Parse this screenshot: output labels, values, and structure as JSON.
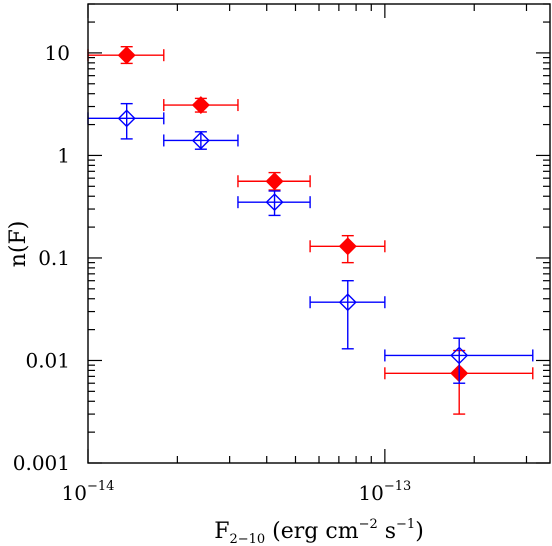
{
  "chart_data": {
    "type": "scatter",
    "xscale": "log",
    "yscale": "log",
    "xlim": [
      1e-14,
      3.6e-13
    ],
    "ylim": [
      0.001,
      30
    ],
    "x_ticks": [
      {
        "value": 1e-14,
        "mantissa": "10",
        "exponent": "−14"
      },
      {
        "value": 1e-13,
        "mantissa": "10",
        "exponent": "−13"
      }
    ],
    "y_ticks": [
      {
        "value": 10,
        "label": "10"
      },
      {
        "value": 1,
        "label": "1"
      },
      {
        "value": 0.1,
        "label": "0.1"
      },
      {
        "value": 0.01,
        "label": "0.01"
      },
      {
        "value": 0.001,
        "label": "0.001"
      }
    ],
    "xlabel": {
      "base": "F",
      "subscript": "2−10",
      "open": " (erg cm",
      "exp1": "−2",
      "mid": " s",
      "exp2": "−1",
      "close": ")"
    },
    "ylabel": "n(F)",
    "grid": false,
    "series": [
      {
        "color": "#ff0000",
        "marker": "filled-diamond",
        "points": [
          {
            "x": 1.35e-14,
            "x_lo": 1e-14,
            "x_hi": 1.8e-14,
            "y": 9.5,
            "y_lo": 7.9,
            "y_hi": 11.5
          },
          {
            "x": 2.4e-14,
            "x_lo": 1.8e-14,
            "x_hi": 3.2e-14,
            "y": 3.1,
            "y_lo": 2.65,
            "y_hi": 3.6
          },
          {
            "x": 4.25e-14,
            "x_lo": 3.2e-14,
            "x_hi": 5.6e-14,
            "y": 0.56,
            "y_lo": 0.46,
            "y_hi": 0.68
          },
          {
            "x": 7.5e-14,
            "x_lo": 5.6e-14,
            "x_hi": 1e-13,
            "y": 0.13,
            "y_lo": 0.09,
            "y_hi": 0.165
          },
          {
            "x": 1.78e-13,
            "x_lo": 1e-13,
            "x_hi": 3.15e-13,
            "y": 0.0075,
            "y_lo": 0.003,
            "y_hi": 0.0125
          }
        ]
      },
      {
        "color": "#0000ff",
        "marker": "open-diamond",
        "points": [
          {
            "x": 1.35e-14,
            "x_lo": 1e-14,
            "x_hi": 1.8e-14,
            "y": 2.3,
            "y_lo": 1.45,
            "y_hi": 3.2
          },
          {
            "x": 2.4e-14,
            "x_lo": 1.8e-14,
            "x_hi": 3.2e-14,
            "y": 1.4,
            "y_lo": 1.15,
            "y_hi": 1.7
          },
          {
            "x": 4.25e-14,
            "x_lo": 3.2e-14,
            "x_hi": 5.6e-14,
            "y": 0.35,
            "y_lo": 0.26,
            "y_hi": 0.45
          },
          {
            "x": 7.5e-14,
            "x_lo": 5.6e-14,
            "x_hi": 1e-13,
            "y": 0.037,
            "y_lo": 0.013,
            "y_hi": 0.06
          },
          {
            "x": 1.78e-13,
            "x_lo": 1e-13,
            "x_hi": 3.15e-13,
            "y": 0.0112,
            "y_lo": 0.006,
            "y_hi": 0.0165
          }
        ]
      }
    ]
  }
}
